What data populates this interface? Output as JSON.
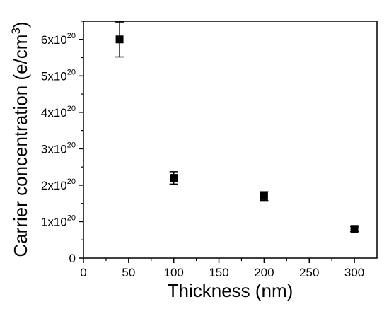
{
  "chart_data": {
    "type": "scatter",
    "xlabel": "Thickness (nm)",
    "ylabel": {
      "prefix": "Carrier concentration (e/cm",
      "superscript": "3",
      "suffix": ")"
    },
    "xlim": [
      0,
      325
    ],
    "ylim": [
      0,
      6.5
    ],
    "y_multiplier_label": {
      "base": "x10",
      "exponent": "20"
    },
    "xticks": [
      0,
      50,
      100,
      150,
      200,
      250,
      300
    ],
    "xtick_labels": [
      "0",
      "50",
      "100",
      "150",
      "200",
      "250",
      "300"
    ],
    "yticks": [
      0,
      1,
      2,
      3,
      4,
      5,
      6
    ],
    "ytick_labels": [
      "0",
      "1",
      "2",
      "3",
      "4",
      "5",
      "6"
    ],
    "series": [
      {
        "marker": "square",
        "color": "#000000",
        "points": [
          {
            "x": 40,
            "y": 6.0,
            "yerr": 0.48
          },
          {
            "x": 100,
            "y": 2.2,
            "yerr": 0.17
          },
          {
            "x": 200,
            "y": 1.7,
            "yerr": 0.12
          },
          {
            "x": 300,
            "y": 0.8,
            "yerr": 0.07
          }
        ]
      }
    ],
    "grid": false,
    "legend": null,
    "frame": "box"
  }
}
